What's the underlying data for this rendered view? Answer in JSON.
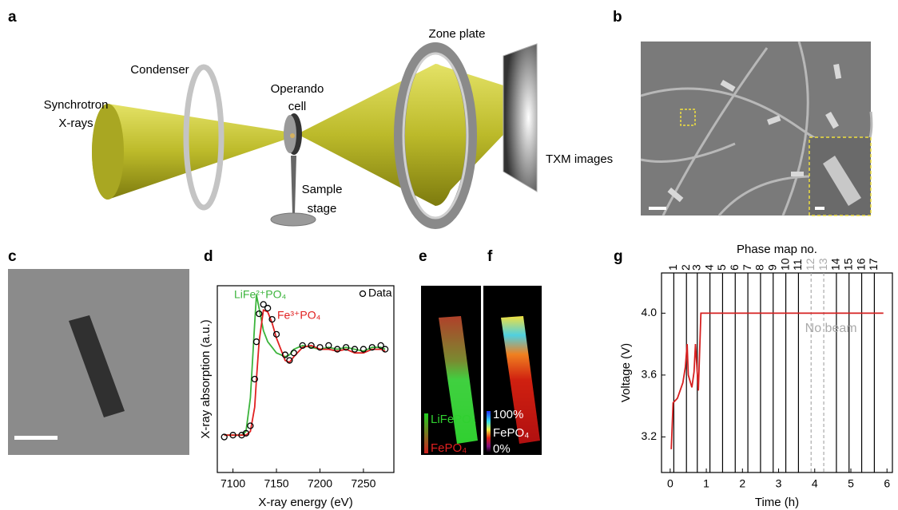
{
  "panel_labels": [
    "a",
    "b",
    "c",
    "d",
    "e",
    "f",
    "g"
  ],
  "diagram": {
    "source": [
      "Synchrotron",
      "X-rays"
    ],
    "condenser": "Condenser",
    "cell": [
      "Operando",
      "cell"
    ],
    "stage": [
      "Sample",
      "stage"
    ],
    "zone_plate": "Zone plate",
    "detector": "TXM images"
  },
  "map_e": {
    "labels": [
      "LiFePO₄",
      "FePO₄"
    ]
  },
  "map_f": {
    "labels": [
      "100%",
      "FePO₄",
      "0%"
    ]
  },
  "chart_data": [
    {
      "type": "line",
      "xlabel": "X-ray energy (eV)",
      "ylabel": "X-ray absorption (a.u.)",
      "x": [
        7090,
        7100,
        7110,
        7115,
        7120,
        7125,
        7127,
        7130,
        7135,
        7140,
        7145,
        7150,
        7160,
        7165,
        7170,
        7180,
        7190,
        7200,
        7210,
        7220,
        7230,
        7240,
        7250,
        7260,
        7270,
        7275
      ],
      "series": [
        {
          "name": "LiFe²⁺PO₄",
          "color": "#3cb43c",
          "values": [
            0.2,
            0.2,
            0.2,
            0.22,
            0.4,
            0.8,
            0.95,
            0.88,
            0.76,
            0.7,
            0.67,
            0.64,
            0.62,
            0.63,
            0.66,
            0.68,
            0.67,
            0.66,
            0.67,
            0.66,
            0.67,
            0.66,
            0.65,
            0.67,
            0.67,
            0.66
          ]
        },
        {
          "name": "Fe³⁺PO₄",
          "color": "#e02020",
          "values": [
            0.2,
            0.2,
            0.2,
            0.2,
            0.22,
            0.35,
            0.5,
            0.7,
            0.87,
            0.86,
            0.8,
            0.72,
            0.6,
            0.59,
            0.62,
            0.67,
            0.68,
            0.66,
            0.66,
            0.65,
            0.66,
            0.64,
            0.64,
            0.66,
            0.66,
            0.65
          ]
        },
        {
          "name": "Data",
          "color": "#000000",
          "marker": "circle",
          "line": false,
          "values": [
            0.19,
            0.2,
            0.2,
            0.21,
            0.25,
            0.5,
            0.7,
            0.85,
            0.9,
            0.88,
            0.82,
            0.74,
            0.63,
            0.6,
            0.64,
            0.68,
            0.68,
            0.67,
            0.68,
            0.66,
            0.67,
            0.66,
            0.66,
            0.67,
            0.68,
            0.66
          ]
        }
      ],
      "xlim": [
        7082,
        7285
      ],
      "xticks": [
        7100,
        7150,
        7200,
        7250
      ],
      "ylim": [
        0,
        1
      ]
    },
    {
      "type": "line",
      "xlabel": "Time (h)",
      "ylabel": "Voltage (V)",
      "x2label": "Phase map no.",
      "annotation": "No beam",
      "x": [
        0.03,
        0.08,
        0.2,
        0.35,
        0.42,
        0.47,
        0.5,
        0.6,
        0.66,
        0.7,
        0.78,
        0.85,
        5.9
      ],
      "series": [
        {
          "color": "#d62020",
          "values": [
            3.12,
            3.42,
            3.45,
            3.55,
            3.65,
            3.8,
            3.6,
            3.52,
            3.62,
            3.8,
            3.5,
            4.0,
            4.0
          ]
        }
      ],
      "xlim": [
        -0.24,
        6.15
      ],
      "xticks": [
        0,
        1,
        2,
        3,
        4,
        5,
        6
      ],
      "ylim": [
        2.97,
        4.26
      ],
      "yticks": [
        3.2,
        3.6,
        {
          "value": 4,
          "label": "4.0"
        }
      ],
      "x2ticks": [
        {
          "value": 0.1,
          "label": "1"
        },
        {
          "value": 0.45,
          "label": "2"
        },
        {
          "value": 0.75,
          "label": "3"
        },
        {
          "value": 1.1,
          "label": "4"
        },
        {
          "value": 1.45,
          "label": "5"
        },
        {
          "value": 1.8,
          "label": "6"
        },
        {
          "value": 2.15,
          "label": "7"
        },
        {
          "value": 2.5,
          "label": "8"
        },
        {
          "value": 2.85,
          "label": "9"
        },
        {
          "value": 3.2,
          "label": "10"
        },
        {
          "value": 3.55,
          "label": "11"
        },
        {
          "value": 3.9,
          "label": "12",
          "style": "dashed",
          "color": "#aaaaaa"
        },
        {
          "value": 4.25,
          "label": "13",
          "style": "dashed",
          "color": "#aaaaaa"
        },
        {
          "value": 4.6,
          "label": "14"
        },
        {
          "value": 4.95,
          "label": "15"
        },
        {
          "value": 5.3,
          "label": "16"
        },
        {
          "value": 5.65,
          "label": "17"
        }
      ]
    }
  ]
}
